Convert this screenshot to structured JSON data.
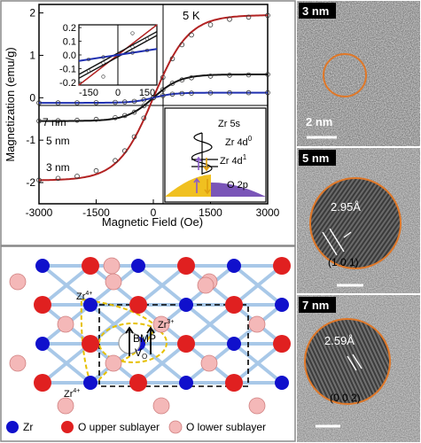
{
  "chart_data": {
    "type": "scatter",
    "xlabel": "Magnetic Field (Oe)",
    "ylabel": "Magnetization (emu/g)",
    "xlim": [
      -3000,
      3000
    ],
    "ylim": [
      -2.5,
      2.2
    ],
    "x_ticks": [
      "-3000",
      "-1500",
      "0",
      "1500",
      "3000"
    ],
    "y_ticks": [
      "-2",
      "-1",
      "0",
      "1",
      "2"
    ],
    "temperature_label": "5 K",
    "series": [
      {
        "name": "3 nm",
        "color": "#b22222",
        "ms": 1.95,
        "h_half": 420,
        "x": [
          -3000,
          -2500,
          -2000,
          -1500,
          -1000,
          -750,
          -500,
          -250,
          0,
          250,
          500,
          750,
          1000,
          1500,
          2000,
          2500,
          3000
        ],
        "y": [
          -1.94,
          -1.9,
          -1.85,
          -1.72,
          -1.48,
          -1.25,
          -0.92,
          -0.48,
          0.0,
          0.48,
          0.92,
          1.25,
          1.48,
          1.72,
          1.85,
          1.9,
          1.94
        ]
      },
      {
        "name": "5 nm",
        "color": "#111111",
        "ms": 0.55,
        "h_half": 320,
        "x": [
          -3000,
          -2500,
          -2000,
          -1500,
          -1000,
          -750,
          -500,
          -250,
          0,
          250,
          500,
          750,
          1000,
          1500,
          2000,
          2500,
          3000
        ],
        "y": [
          -0.55,
          -0.54,
          -0.53,
          -0.51,
          -0.47,
          -0.42,
          -0.34,
          -0.19,
          0.0,
          0.19,
          0.34,
          0.42,
          0.47,
          0.51,
          0.53,
          0.54,
          0.55
        ]
      },
      {
        "name": "7 nm",
        "color": "#2030b0",
        "ms": 0.12,
        "h_half": 250,
        "x": [
          -3000,
          -2500,
          -2000,
          -1500,
          -1000,
          -750,
          -500,
          -250,
          0,
          250,
          500,
          750,
          1000,
          1500,
          2000,
          2500,
          3000
        ],
        "y": [
          -0.12,
          -0.12,
          -0.118,
          -0.115,
          -0.108,
          -0.1,
          -0.085,
          -0.05,
          0.0,
          0.05,
          0.085,
          0.1,
          0.108,
          0.115,
          0.118,
          0.12,
          0.12
        ]
      }
    ],
    "inset": {
      "xlim": [
        -200,
        200
      ],
      "ylim": [
        -0.22,
        0.22
      ],
      "x_ticks": [
        "-150",
        "0",
        "150"
      ],
      "y_ticks": [
        "0.2",
        "0.1",
        "0.0",
        "-0.1",
        "-0.2"
      ]
    }
  },
  "energy_diagram": {
    "zr5s": "Zr 5s",
    "zr4d0": "Zr 4d",
    "zr4d0_sup": "0",
    "zr4d1": "Zr 4d",
    "zr4d1_sup": "1",
    "o2p": "O 2p"
  },
  "lattice": {
    "zr4_top": "Zr",
    "zr4_top_sup": "4+",
    "zr3": "Zr",
    "zr3_sup": "3+",
    "zr4_bottom": "Zr",
    "zr4_bottom_sup": "4+",
    "bmp": "BMP",
    "vo": "V",
    "vo_sub": "O",
    "legend": [
      "Zr",
      "O upper sublayer",
      "O lower sublayer"
    ],
    "colors": {
      "zr": "#1010cc",
      "o_upper": "#e02020",
      "o_lower": "#f4b8b8"
    }
  },
  "tem": [
    {
      "label": "3 nm",
      "scale": "2 nm"
    },
    {
      "label": "5 nm",
      "spacing": "2.95Å",
      "plane": "(1 0 1)"
    },
    {
      "label": "7 nm",
      "spacing": "2.59Å",
      "plane": "(0 0 2)"
    }
  ]
}
